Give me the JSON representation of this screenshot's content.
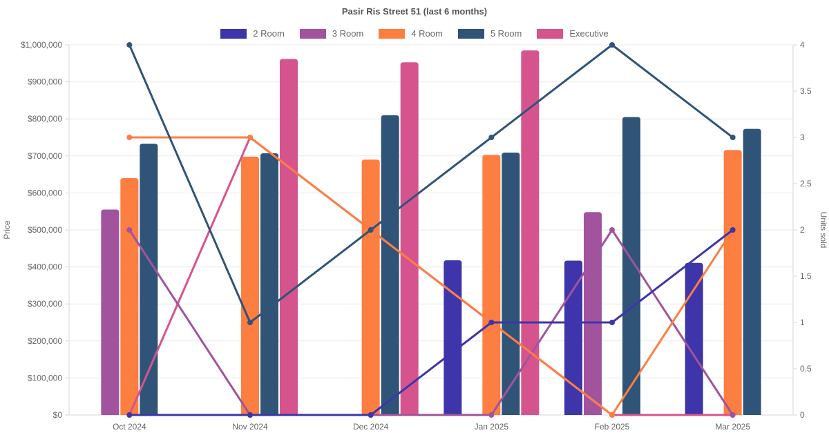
{
  "title": "Pasir Ris Street 51 (last 6 months)",
  "legend": [
    {
      "label": "2 Room",
      "color": "#3d35a9"
    },
    {
      "label": "3 Room",
      "color": "#a2539e"
    },
    {
      "label": "4 Room",
      "color": "#fd7e41"
    },
    {
      "label": "5 Room",
      "color": "#2f5478"
    },
    {
      "label": "Executive",
      "color": "#d6548e"
    }
  ],
  "chart_data": {
    "type": "bar+line",
    "categories": [
      "Oct 2024",
      "Nov 2024",
      "Dec 2024",
      "Jan 2025",
      "Feb 2025",
      "Mar 2025"
    ],
    "left_axis": {
      "label": "Price",
      "min": 0,
      "max": 1000000,
      "tick_step": 100000,
      "ticks": [
        "$0",
        "$100,000",
        "$200,000",
        "$300,000",
        "$400,000",
        "$500,000",
        "$600,000",
        "$700,000",
        "$800,000",
        "$900,000",
        "$1,000,000"
      ]
    },
    "right_axis": {
      "label": "Units sold",
      "min": 0,
      "max": 4,
      "tick_step": 0.5,
      "ticks": [
        "0",
        "0.5",
        "1",
        "1.5",
        "2",
        "2.5",
        "3",
        "3.5",
        "4"
      ]
    },
    "legend_position": "top",
    "grid": "horizontal-100k",
    "bar_series": [
      {
        "name": "2 Room",
        "color": "#3d35a9",
        "axis": "left",
        "values": [
          null,
          null,
          null,
          418000,
          417000,
          411000
        ]
      },
      {
        "name": "3 Room",
        "color": "#a2539e",
        "axis": "left",
        "values": [
          555000,
          null,
          null,
          null,
          548000,
          null
        ]
      },
      {
        "name": "4 Room",
        "color": "#fd7e41",
        "axis": "left",
        "values": [
          640000,
          698000,
          690000,
          703000,
          null,
          716000
        ]
      },
      {
        "name": "5 Room",
        "color": "#2f5478",
        "axis": "left",
        "values": [
          733000,
          707000,
          810000,
          709000,
          805000,
          773000
        ]
      },
      {
        "name": "Executive",
        "color": "#d6548e",
        "axis": "left",
        "values": [
          null,
          962000,
          953000,
          985000,
          null,
          null
        ]
      }
    ],
    "line_series": [
      {
        "name": "2 Room",
        "color": "#3d35a9",
        "axis": "right",
        "values": [
          0,
          0,
          0,
          1,
          1,
          2
        ]
      },
      {
        "name": "3 Room",
        "color": "#a2539e",
        "axis": "right",
        "values": [
          2,
          0,
          0,
          0,
          2,
          0
        ]
      },
      {
        "name": "4 Room",
        "color": "#fd7e41",
        "axis": "right",
        "values": [
          3,
          3,
          2,
          1,
          0,
          2
        ]
      },
      {
        "name": "5 Room",
        "color": "#2f5478",
        "axis": "right",
        "values": [
          4,
          1,
          2,
          3,
          4,
          3
        ]
      },
      {
        "name": "Executive",
        "color": "#d6548e",
        "axis": "right",
        "values": [
          0,
          3,
          2,
          1,
          0,
          0
        ]
      }
    ]
  }
}
